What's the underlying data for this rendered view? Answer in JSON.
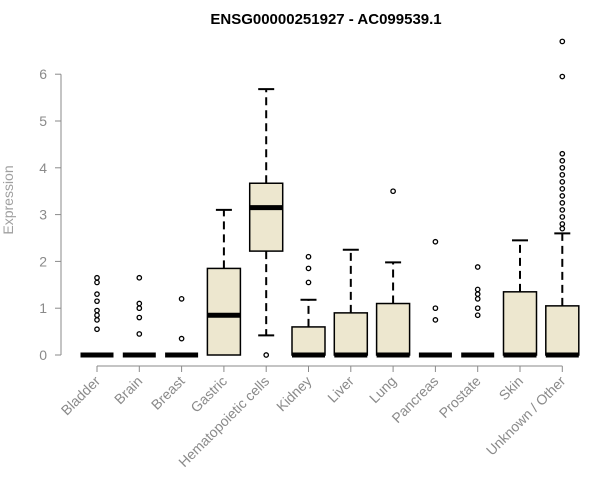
{
  "chart_data": {
    "type": "boxplot",
    "title": "ENSG00000251927 - AC099539.1",
    "ylabel": "Expression",
    "xlabel": "",
    "ylim": [
      0,
      6.7
    ],
    "yticks": [
      0,
      1,
      2,
      3,
      4,
      5,
      6
    ],
    "grid": false,
    "colors": {
      "box_fill": "#ede7cf",
      "stroke": "#000000",
      "axis_text": "#8a8a8a",
      "ylabel": "#a0a0a0"
    },
    "categories": [
      "Bladder",
      "Brain",
      "Breast",
      "Gastric",
      "Hematopoietic cells",
      "Kidney",
      "Liver",
      "Lung",
      "Pancreas",
      "Prostate",
      "Skin",
      "Unknown / Other"
    ],
    "boxes": [
      {
        "name": "Bladder",
        "q1": 0,
        "median": 0,
        "q3": 0,
        "whisker_low": 0,
        "whisker_high": 0,
        "outliers": [
          0.55,
          0.75,
          0.85,
          0.95,
          1.15,
          1.3,
          1.55,
          1.65
        ]
      },
      {
        "name": "Brain",
        "q1": 0,
        "median": 0,
        "q3": 0,
        "whisker_low": 0,
        "whisker_high": 0,
        "outliers": [
          0.45,
          0.8,
          1.0,
          1.1,
          1.65
        ]
      },
      {
        "name": "Breast",
        "q1": 0,
        "median": 0,
        "q3": 0,
        "whisker_low": 0,
        "whisker_high": 0,
        "outliers": [
          0.35,
          1.2
        ]
      },
      {
        "name": "Gastric",
        "q1": 0,
        "median": 0.85,
        "q3": 1.85,
        "whisker_low": 0,
        "whisker_high": 3.1,
        "outliers": []
      },
      {
        "name": "Hematopoietic cells",
        "q1": 2.22,
        "median": 3.15,
        "q3": 3.67,
        "whisker_low": 0.42,
        "whisker_high": 5.68,
        "outliers": [
          0
        ]
      },
      {
        "name": "Kidney",
        "q1": 0,
        "median": 0,
        "q3": 0.6,
        "whisker_low": 0,
        "whisker_high": 1.18,
        "outliers": [
          1.55,
          1.85,
          2.1
        ]
      },
      {
        "name": "Liver",
        "q1": 0,
        "median": 0,
        "q3": 0.9,
        "whisker_low": 0,
        "whisker_high": 2.25,
        "outliers": []
      },
      {
        "name": "Lung",
        "q1": 0,
        "median": 0,
        "q3": 1.1,
        "whisker_low": 0,
        "whisker_high": 1.98,
        "outliers": [
          3.5
        ]
      },
      {
        "name": "Pancreas",
        "q1": 0,
        "median": 0,
        "q3": 0,
        "whisker_low": 0,
        "whisker_high": 0,
        "outliers": [
          0.75,
          1.0,
          2.42
        ]
      },
      {
        "name": "Prostate",
        "q1": 0,
        "median": 0,
        "q3": 0,
        "whisker_low": 0,
        "whisker_high": 0,
        "outliers": [
          0.85,
          1.0,
          1.2,
          1.3,
          1.4,
          1.88
        ]
      },
      {
        "name": "Skin",
        "q1": 0,
        "median": 0,
        "q3": 1.35,
        "whisker_low": 0,
        "whisker_high": 2.45,
        "outliers": []
      },
      {
        "name": "Unknown / Other",
        "q1": 0,
        "median": 0,
        "q3": 1.05,
        "whisker_low": 0,
        "whisker_high": 2.6,
        "outliers": [
          2.7,
          2.8,
          2.95,
          3.1,
          3.25,
          3.4,
          3.55,
          3.7,
          3.85,
          4.0,
          4.15,
          4.3,
          5.95,
          6.7
        ]
      }
    ]
  }
}
